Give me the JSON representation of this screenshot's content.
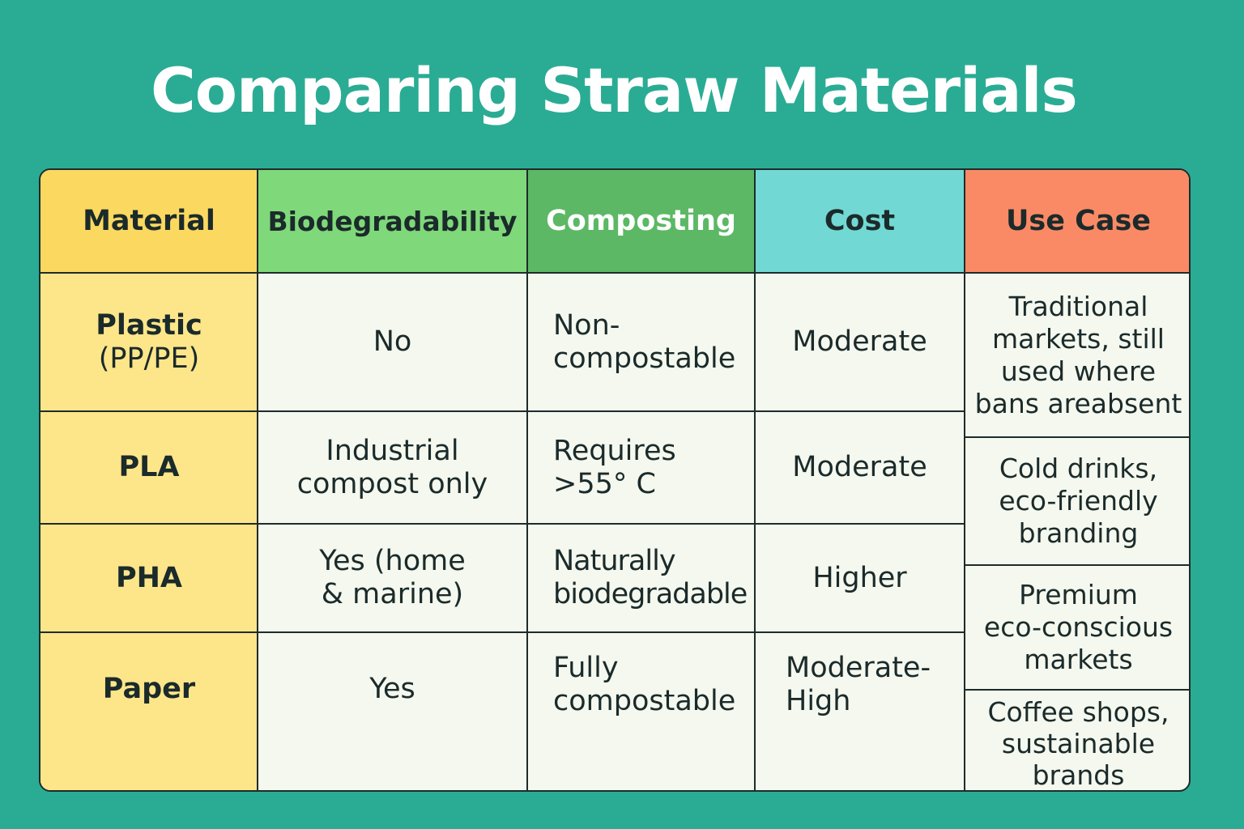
{
  "title": "Comparing Straw Materials",
  "colors": {
    "background": "#2aac94",
    "material_col": "#fde68a",
    "header_material": "#fbd860",
    "header_biodegradability": "#7fd87a",
    "header_composting": "#5cb865",
    "header_cost": "#72d8d4",
    "header_use_case": "#fa8a66",
    "body_cell": "#f4f8ee"
  },
  "headers": {
    "material": "Material",
    "biodegradability": "Biodegradability",
    "composting": "Composting",
    "cost": "Cost",
    "use_case": "Use Case"
  },
  "rows": [
    {
      "material": "Plastic",
      "material_sub": "(PP/PE)",
      "biodegradability": "No",
      "composting": "Non-\ncompostable",
      "cost": "Moderate"
    },
    {
      "material": "PLA",
      "biodegradability": "Industrial\ncompost only",
      "composting": "Requires\n>55° C",
      "cost": "Moderate"
    },
    {
      "material": "PHA",
      "biodegradability": "Yes (home\n& marine)",
      "composting": "Naturally\nbiodegradable",
      "cost": "Higher"
    },
    {
      "material": "Paper",
      "biodegradability": "Yes",
      "composting": "Fully\ncompostable",
      "cost": "Moderate-\nHigh"
    }
  ],
  "use_cases": [
    "Traditional\nmarkets, still\nused where\nbans areabsent",
    "Cold drinks,\neco-friendly\nbranding",
    "Premium\neco-conscious\nmarkets",
    "Coffee shops,\nsustainable\nbrands"
  ]
}
